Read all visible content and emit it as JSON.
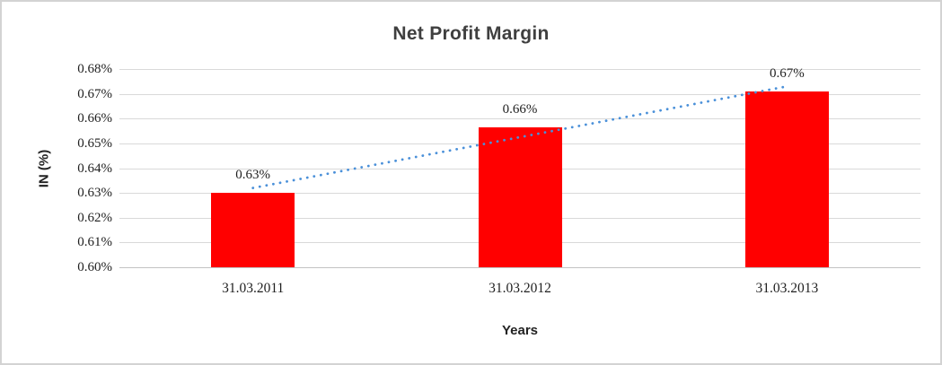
{
  "figure": {
    "background_color": "#ffffff",
    "border_color": "#d3d3d3"
  },
  "chart_data": {
    "type": "bar",
    "title": "Net Profit Margin",
    "xlabel": "Years",
    "ylabel": "IN (%)",
    "categories": [
      "31.03.2011",
      "31.03.2012",
      "31.03.2013"
    ],
    "series": [
      {
        "name": "Net Profit Margin",
        "values": [
          0.63,
          0.66,
          0.67
        ],
        "precise_values": [
          0.63,
          0.6565,
          0.671
        ],
        "data_labels": [
          "0.63%",
          "0.66%",
          "0.67%"
        ],
        "color": "#ff0000"
      }
    ],
    "ylim": [
      0.6,
      0.68
    ],
    "ytick_step": 0.01,
    "ytick_labels": [
      "0.60%",
      "0.61%",
      "0.62%",
      "0.63%",
      "0.64%",
      "0.65%",
      "0.66%",
      "0.67%",
      "0.68%"
    ],
    "grid": true,
    "gridline_color": "#d9d9d9",
    "axis_line_color": "#c3c3c3",
    "legend": "none",
    "trendline": {
      "type": "linear",
      "style": "dotted",
      "color": "#4a90d9"
    }
  }
}
